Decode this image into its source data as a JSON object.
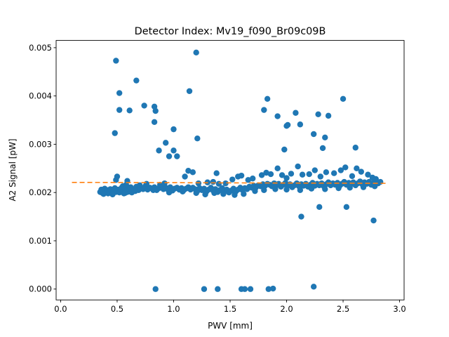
{
  "chart_data": {
    "type": "scatter",
    "title": "Detector Index: Mv19_f090_Br09c09B",
    "xlabel": "PWV [mm]",
    "ylabel": "A2 Signal [pW]",
    "xlim": [
      -0.04,
      3.04
    ],
    "ylim": [
      -0.000225,
      0.00515
    ],
    "x_ticks": [
      0.0,
      0.5,
      1.0,
      1.5,
      2.0,
      2.5,
      3.0
    ],
    "x_tick_labels": [
      "0.0",
      "0.5",
      "1.0",
      "1.5",
      "2.0",
      "2.5",
      "3.0"
    ],
    "y_ticks": [
      0.0,
      0.001,
      0.002,
      0.003,
      0.004,
      0.005
    ],
    "y_tick_labels": [
      "0.000",
      "0.001",
      "0.002",
      "0.003",
      "0.004",
      "0.005"
    ],
    "colors": {
      "points": "#1f77b4",
      "fit_line": "#ff7f0e"
    },
    "fit_line": {
      "x": [
        0.1,
        2.88
      ],
      "y": [
        0.00221,
        0.00219
      ],
      "style": "dashed"
    },
    "series": [
      {
        "name": "A2 signal",
        "points": [
          [
            0.35,
            0.00201
          ],
          [
            0.36,
            0.00206
          ],
          [
            0.37,
            0.00199
          ],
          [
            0.38,
            0.00203
          ],
          [
            0.39,
            0.00208
          ],
          [
            0.4,
            0.002
          ],
          [
            0.41,
            0.00205
          ],
          [
            0.42,
            0.00198
          ],
          [
            0.43,
            0.00204
          ],
          [
            0.44,
            0.00207
          ],
          [
            0.45,
            0.00202
          ],
          [
            0.46,
            0.00199
          ],
          [
            0.47,
            0.00205
          ],
          [
            0.48,
            0.00209
          ],
          [
            0.49,
            0.00201
          ],
          [
            0.5,
            0.00203
          ],
          [
            0.51,
            0.00206
          ],
          [
            0.52,
            0.002
          ],
          [
            0.53,
            0.00204
          ],
          [
            0.54,
            0.0021
          ],
          [
            0.55,
            0.00202
          ],
          [
            0.56,
            0.00198
          ],
          [
            0.57,
            0.00205
          ],
          [
            0.58,
            0.00207
          ],
          [
            0.59,
            0.00201
          ],
          [
            0.6,
            0.00204
          ],
          [
            0.61,
            0.00202
          ],
          [
            0.62,
            0.00208
          ],
          [
            0.63,
            0.002
          ],
          [
            0.65,
            0.00206
          ],
          [
            0.67,
            0.00212
          ],
          [
            0.69,
            0.00205
          ],
          [
            0.71,
            0.00209
          ],
          [
            0.73,
            0.00207
          ],
          [
            0.75,
            0.00213
          ],
          [
            0.77,
            0.00206
          ],
          [
            0.79,
            0.0021
          ],
          [
            0.81,
            0.00208
          ],
          [
            0.83,
            0.00211
          ],
          [
            0.85,
            0.00205
          ],
          [
            0.87,
            0.00209
          ],
          [
            0.89,
            0.00212
          ],
          [
            0.91,
            0.00207
          ],
          [
            0.93,
            0.0021
          ],
          [
            0.95,
            0.00206
          ],
          [
            0.97,
            0.00211
          ],
          [
            0.99,
            0.00204
          ],
          [
            1.01,
            0.00208
          ],
          [
            1.03,
            0.0021
          ],
          [
            1.05,
            0.00206
          ],
          [
            1.07,
            0.00209
          ],
          [
            1.09,
            0.00205
          ],
          [
            1.11,
            0.00208
          ],
          [
            1.13,
            0.00211
          ],
          [
            1.15,
            0.00206
          ],
          [
            1.17,
            0.0021
          ],
          [
            1.19,
            0.00207
          ],
          [
            1.21,
            0.00203
          ],
          [
            1.23,
            0.00209
          ],
          [
            1.25,
            0.00205
          ],
          [
            1.27,
            0.00208
          ],
          [
            1.29,
            0.00202
          ],
          [
            1.31,
            0.00206
          ],
          [
            1.33,
            0.0021
          ],
          [
            1.35,
            0.00204
          ],
          [
            1.37,
            0.00207
          ],
          [
            1.39,
            0.00201
          ],
          [
            1.41,
            0.00205
          ],
          [
            1.43,
            0.00209
          ],
          [
            1.45,
            0.00203
          ],
          [
            1.47,
            0.00206
          ],
          [
            1.49,
            0.002
          ],
          [
            1.51,
            0.00204
          ],
          [
            1.53,
            0.00208
          ],
          [
            1.55,
            0.00202
          ],
          [
            1.57,
            0.00206
          ],
          [
            1.59,
            0.0021
          ],
          [
            1.61,
            0.00205
          ],
          [
            1.63,
            0.00209
          ],
          [
            1.65,
            0.00207
          ],
          [
            1.67,
            0.00212
          ],
          [
            1.69,
            0.0021
          ],
          [
            1.71,
            0.00214
          ],
          [
            1.73,
            0.00211
          ],
          [
            1.75,
            0.00215
          ],
          [
            1.77,
            0.00213
          ],
          [
            1.79,
            0.00217
          ],
          [
            1.81,
            0.00214
          ],
          [
            1.83,
            0.00218
          ],
          [
            1.85,
            0.00216
          ],
          [
            1.87,
            0.00213
          ],
          [
            1.89,
            0.00219
          ],
          [
            1.91,
            0.00215
          ],
          [
            1.93,
            0.00218
          ],
          [
            1.95,
            0.00212
          ],
          [
            1.97,
            0.00216
          ],
          [
            1.99,
            0.0022
          ],
          [
            2.01,
            0.00214
          ],
          [
            2.03,
            0.00217
          ],
          [
            2.05,
            0.00211
          ],
          [
            2.07,
            0.00215
          ],
          [
            2.09,
            0.00219
          ],
          [
            2.11,
            0.00213
          ],
          [
            2.13,
            0.00217
          ],
          [
            2.15,
            0.00214
          ],
          [
            2.17,
            0.00218
          ],
          [
            2.19,
            0.00212
          ],
          [
            2.21,
            0.00216
          ],
          [
            2.23,
            0.0022
          ],
          [
            2.25,
            0.00214
          ],
          [
            2.27,
            0.00218
          ],
          [
            2.29,
            0.00215
          ],
          [
            2.31,
            0.00219
          ],
          [
            2.33,
            0.00213
          ],
          [
            2.35,
            0.00217
          ],
          [
            2.37,
            0.00221
          ],
          [
            2.39,
            0.00215
          ],
          [
            2.41,
            0.00219
          ],
          [
            2.43,
            0.00216
          ],
          [
            2.45,
            0.0022
          ],
          [
            2.47,
            0.00214
          ],
          [
            2.49,
            0.00218
          ],
          [
            2.51,
            0.00222
          ],
          [
            2.53,
            0.00216
          ],
          [
            2.55,
            0.0022
          ],
          [
            2.57,
            0.00217
          ],
          [
            2.59,
            0.00221
          ],
          [
            2.61,
            0.00215
          ],
          [
            2.63,
            0.00219
          ],
          [
            2.65,
            0.00223
          ],
          [
            2.67,
            0.00217
          ],
          [
            2.69,
            0.00221
          ],
          [
            2.71,
            0.00218
          ],
          [
            2.73,
            0.00222
          ],
          [
            2.75,
            0.00216
          ],
          [
            2.77,
            0.0022
          ],
          [
            2.79,
            0.00224
          ],
          [
            2.81,
            0.00219
          ],
          [
            2.83,
            0.00222
          ],
          [
            0.49,
            0.00226
          ],
          [
            0.5,
            0.00233
          ],
          [
            0.55,
            0.00213
          ],
          [
            0.58,
            0.00216
          ],
          [
            0.59,
            0.00224
          ],
          [
            0.62,
            0.00211
          ],
          [
            0.7,
            0.00215
          ],
          [
            0.76,
            0.00218
          ],
          [
            0.88,
            0.00216
          ],
          [
            0.92,
            0.00219
          ],
          [
            1.1,
            0.00233
          ],
          [
            1.13,
            0.00245
          ],
          [
            1.17,
            0.00242
          ],
          [
            1.22,
            0.00219
          ],
          [
            1.3,
            0.00221
          ],
          [
            1.35,
            0.00222
          ],
          [
            1.38,
            0.0024
          ],
          [
            1.4,
            0.00218
          ],
          [
            1.46,
            0.00219
          ],
          [
            1.52,
            0.00227
          ],
          [
            1.57,
            0.00233
          ],
          [
            1.6,
            0.00235
          ],
          [
            1.66,
            0.00226
          ],
          [
            1.7,
            0.00229
          ],
          [
            1.78,
            0.00236
          ],
          [
            1.82,
            0.00241
          ],
          [
            1.86,
            0.00238
          ],
          [
            1.92,
            0.0025
          ],
          [
            1.96,
            0.00236
          ],
          [
            2.0,
            0.0023
          ],
          [
            2.04,
            0.00239
          ],
          [
            2.1,
            0.00254
          ],
          [
            2.14,
            0.00237
          ],
          [
            2.2,
            0.00238
          ],
          [
            2.25,
            0.00246
          ],
          [
            2.3,
            0.00233
          ],
          [
            2.35,
            0.00242
          ],
          [
            2.42,
            0.0024
          ],
          [
            2.48,
            0.00246
          ],
          [
            2.52,
            0.00252
          ],
          [
            2.58,
            0.00234
          ],
          [
            2.62,
            0.0025
          ],
          [
            2.66,
            0.00243
          ],
          [
            2.72,
            0.00237
          ],
          [
            2.76,
            0.00231
          ],
          [
            2.79,
            0.00228
          ],
          [
            0.38,
            0.00197
          ],
          [
            0.46,
            0.00196
          ],
          [
            0.57,
            0.00199
          ],
          [
            0.66,
            0.00203
          ],
          [
            0.82,
            0.00205
          ],
          [
            0.96,
            0.002
          ],
          [
            1.08,
            0.00202
          ],
          [
            1.2,
            0.00199
          ],
          [
            1.28,
            0.00196
          ],
          [
            1.36,
            0.00199
          ],
          [
            1.44,
            0.00197
          ],
          [
            1.54,
            0.00195
          ],
          [
            1.62,
            0.00197
          ],
          [
            1.72,
            0.00203
          ],
          [
            1.8,
            0.00205
          ],
          [
            1.9,
            0.00207
          ],
          [
            2.0,
            0.00206
          ],
          [
            2.12,
            0.00205
          ],
          [
            2.22,
            0.00208
          ],
          [
            2.34,
            0.00207
          ],
          [
            2.46,
            0.00209
          ],
          [
            2.56,
            0.0021
          ],
          [
            2.68,
            0.00211
          ],
          [
            2.78,
            0.00213
          ],
          [
            0.49,
            0.00473
          ],
          [
            0.67,
            0.00432
          ],
          [
            1.2,
            0.0049
          ],
          [
            0.52,
            0.00406
          ],
          [
            1.14,
            0.0041
          ],
          [
            0.52,
            0.00371
          ],
          [
            0.61,
            0.0037
          ],
          [
            0.74,
            0.0038
          ],
          [
            0.83,
            0.00378
          ],
          [
            0.84,
            0.00369
          ],
          [
            0.83,
            0.00346
          ],
          [
            1.0,
            0.00331
          ],
          [
            0.48,
            0.00323
          ],
          [
            1.21,
            0.00312
          ],
          [
            0.93,
            0.00303
          ],
          [
            0.87,
            0.00287
          ],
          [
            1.0,
            0.00287
          ],
          [
            0.96,
            0.00275
          ],
          [
            1.03,
            0.00275
          ],
          [
            1.8,
            0.00371
          ],
          [
            1.83,
            0.00394
          ],
          [
            1.92,
            0.00358
          ],
          [
            2.08,
            0.00365
          ],
          [
            2.01,
            0.0034
          ],
          [
            2.0,
            0.00338
          ],
          [
            2.12,
            0.00341
          ],
          [
            2.28,
            0.00362
          ],
          [
            2.37,
            0.00359
          ],
          [
            2.5,
            0.00394
          ],
          [
            2.24,
            0.00321
          ],
          [
            2.34,
            0.00314
          ],
          [
            2.32,
            0.00292
          ],
          [
            2.61,
            0.00293
          ],
          [
            1.98,
            0.00289
          ],
          [
            2.29,
            0.0017
          ],
          [
            2.53,
            0.0017
          ],
          [
            2.13,
            0.0015
          ],
          [
            2.77,
            0.00142
          ],
          [
            0.84,
            0.0
          ],
          [
            1.27,
            0.0
          ],
          [
            1.39,
            0.0
          ],
          [
            1.6,
            0.0
          ],
          [
            1.63,
            0.0
          ],
          [
            1.68,
            0.0
          ],
          [
            1.84,
            0.0
          ],
          [
            1.88,
            1e-05
          ],
          [
            2.24,
            5e-05
          ]
        ]
      }
    ]
  }
}
